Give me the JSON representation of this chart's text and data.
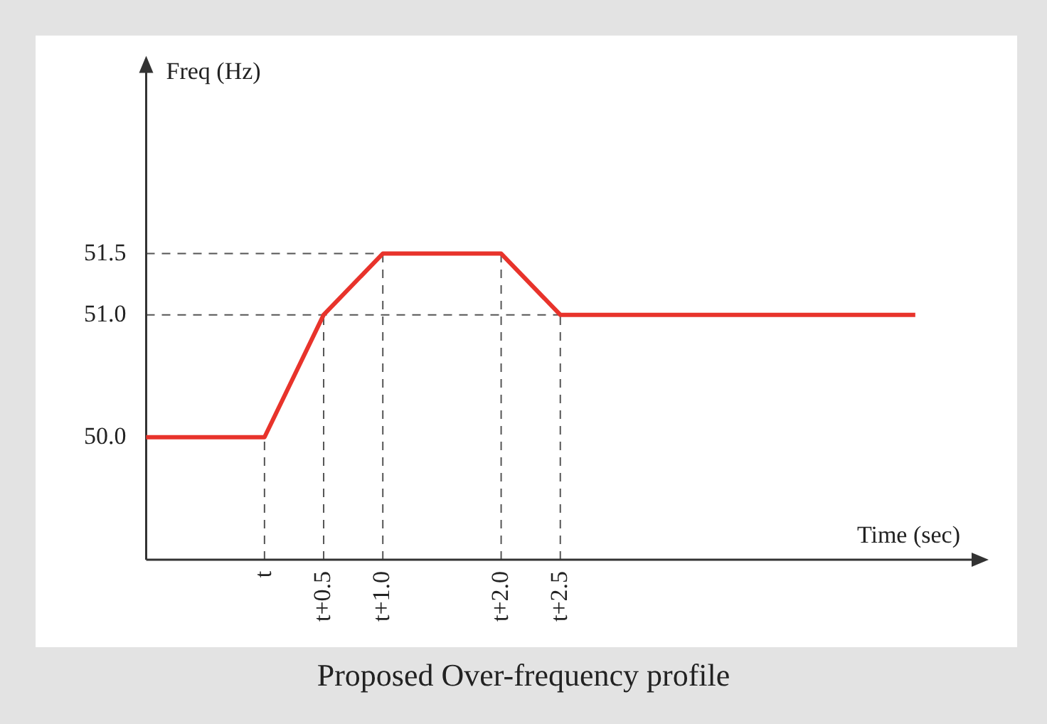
{
  "chart_data": {
    "type": "line",
    "title": "Proposed Over-frequency profile",
    "xlabel": "Time (sec)",
    "ylabel": "Freq (Hz)",
    "categories": [
      null,
      null,
      "t",
      "t+0.5",
      "t+1.0",
      null,
      "t+2.0",
      "t+2.5",
      null,
      null,
      null,
      null,
      null,
      null,
      null
    ],
    "series": [
      {
        "color": "#e8332b",
        "values": [
          50,
          50,
          50,
          51,
          51.5,
          51.5,
          51.5,
          51,
          51,
          51,
          51,
          51,
          51,
          51,
          null
        ]
      }
    ],
    "ylim": [
      49,
      53
    ],
    "yticks": [
      {
        "value": 50,
        "label": "50.0"
      },
      {
        "value": 51,
        "label": "51.0"
      },
      51.5
    ],
    "ref_lines": [
      {
        "axis": "x",
        "value": "t",
        "color": "#555555",
        "line_style": "dashed"
      },
      {
        "axis": "x",
        "value": "t+0.5",
        "color": "#555555",
        "line_style": "dashed"
      },
      {
        "axis": "x",
        "value": "t+1.0",
        "color": "#555555",
        "line_style": "dashed"
      },
      {
        "axis": "x",
        "value": "t+2.0",
        "color": "#555555",
        "line_style": "dashed"
      },
      {
        "axis": "x",
        "value": "t+2.5",
        "color": "#555555",
        "line_style": "dashed"
      },
      {
        "axis": "y",
        "value": 51,
        "color": "#555555",
        "line_style": "dashed"
      },
      {
        "axis": "y",
        "value": 51.5,
        "color": "#555555",
        "line_style": "dashed"
      }
    ],
    "grid": false,
    "legend": false,
    "marker": "none",
    "line_style": "solid"
  }
}
